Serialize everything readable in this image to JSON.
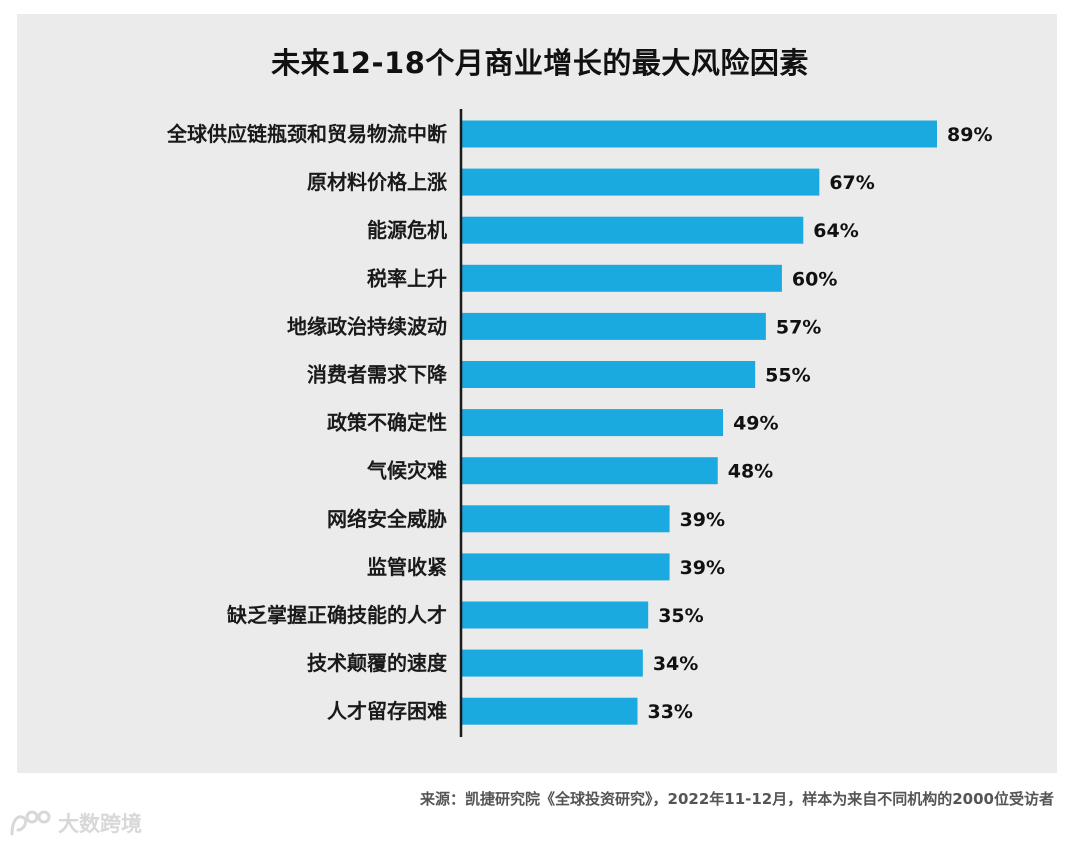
{
  "chart_data": {
    "type": "bar",
    "orientation": "horizontal",
    "title": "未来12-18个月商业增长的最大风险因素",
    "categories": [
      "全球供应链瓶颈和贸易物流中断",
      "原材料价格上涨",
      "能源危机",
      "税率上升",
      "地缘政治持续波动",
      "消费者需求下降",
      "政策不确定性",
      "气候灾难",
      "网络安全威胁",
      "监管收紧",
      "缺乏掌握正确技能的人才",
      "技术颠覆的速度",
      "人才留存困难"
    ],
    "values": [
      89,
      67,
      64,
      60,
      57,
      55,
      49,
      48,
      39,
      39,
      35,
      34,
      33
    ],
    "value_labels": [
      "89%",
      "67%",
      "64%",
      "60%",
      "57%",
      "55%",
      "49%",
      "48%",
      "39%",
      "39%",
      "35%",
      "34%",
      "33%"
    ],
    "unit": "%",
    "xlabel": "",
    "ylabel": "",
    "xlim": [
      0,
      100
    ],
    "grid": false,
    "legend": "none",
    "bar_color": "#1aaadf"
  },
  "source_text": "来源：凯捷研究院《全球投资研究》，2022年11-12月，样本为来自不同机构的2000位受访者",
  "watermark_text": "大数跨境",
  "colors": {
    "panel_background": "#ebebeb",
    "axis": "#1a1a1a"
  }
}
